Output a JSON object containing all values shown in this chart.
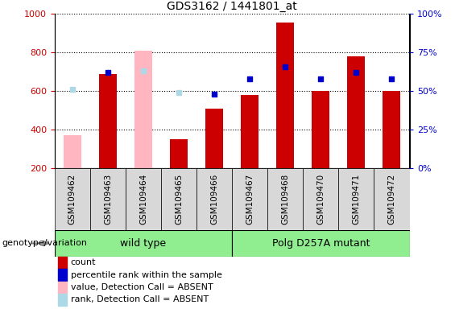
{
  "title": "GDS3162 / 1441801_at",
  "samples": [
    "GSM109462",
    "GSM109463",
    "GSM109464",
    "GSM109465",
    "GSM109466",
    "GSM109467",
    "GSM109468",
    "GSM109470",
    "GSM109471",
    "GSM109472"
  ],
  "count_values": [
    null,
    690,
    null,
    350,
    510,
    580,
    955,
    600,
    780,
    600
  ],
  "count_absent": [
    370,
    null,
    810,
    null,
    null,
    null,
    null,
    null,
    null,
    null
  ],
  "percentile_values": [
    null,
    62,
    null,
    null,
    48,
    58,
    66,
    58,
    62,
    58
  ],
  "percentile_absent": [
    51,
    null,
    63,
    49,
    null,
    null,
    null,
    null,
    null,
    null
  ],
  "groups": [
    {
      "label": "wild type",
      "indices": [
        0,
        1,
        2,
        3,
        4
      ],
      "color": "#90ee90"
    },
    {
      "label": "Polg D257A mutant",
      "indices": [
        5,
        6,
        7,
        8,
        9
      ],
      "color": "#90ee90"
    }
  ],
  "ylim_left": [
    200,
    1000
  ],
  "ylim_right": [
    0,
    100
  ],
  "yticks_left": [
    200,
    400,
    600,
    800,
    1000
  ],
  "yticks_right": [
    0,
    25,
    50,
    75,
    100
  ],
  "color_count": "#cc0000",
  "color_percentile": "#0000cc",
  "color_absent_count": "#ffb6c1",
  "color_absent_percentile": "#add8e6",
  "bar_width": 0.5,
  "group_label": "genotype/variation",
  "bg_color": "#d8d8d8",
  "legend_items": [
    {
      "label": "count",
      "color": "#cc0000"
    },
    {
      "label": "percentile rank within the sample",
      "color": "#0000cc"
    },
    {
      "label": "value, Detection Call = ABSENT",
      "color": "#ffb6c1"
    },
    {
      "label": "rank, Detection Call = ABSENT",
      "color": "#add8e6"
    }
  ]
}
